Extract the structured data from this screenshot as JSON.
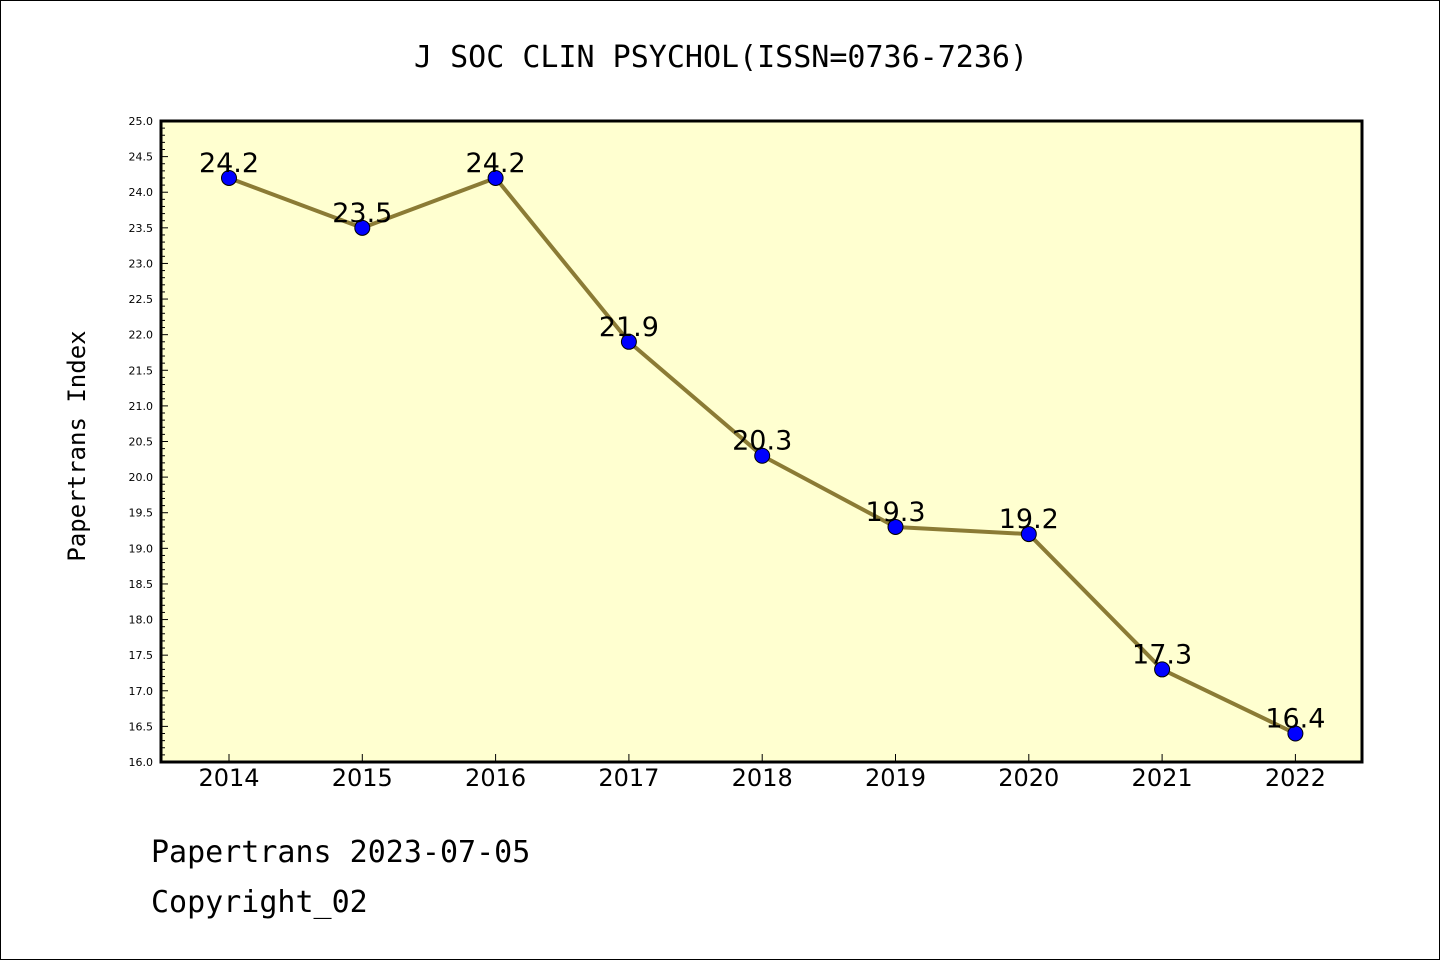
{
  "chart_data": {
    "type": "line",
    "title": "J SOC CLIN PSYCHOL(ISSN=0736-7236)",
    "xlabel": "",
    "ylabel": "Papertrans Index",
    "categories": [
      "2014",
      "2015",
      "2016",
      "2017",
      "2018",
      "2019",
      "2020",
      "2021",
      "2022"
    ],
    "series": [
      {
        "values": [
          24.2,
          23.5,
          24.2,
          21.9,
          20.3,
          19.3,
          19.2,
          17.3,
          16.4
        ]
      }
    ],
    "data_labels": [
      "24.2",
      "23.5",
      "24.2",
      "21.9",
      "20.3",
      "19.3",
      "19.2",
      "17.3",
      "16.4"
    ],
    "ylim": [
      16.0,
      25.0
    ],
    "yticks": [
      "16.0",
      "16.5",
      "17.0",
      "17.5",
      "18.0",
      "18.5",
      "19.0",
      "19.5",
      "20.0",
      "20.5",
      "21.0",
      "21.5",
      "22.0",
      "22.5",
      "23.0",
      "23.5",
      "24.0",
      "24.5",
      "25.0"
    ],
    "grid": false,
    "colors": {
      "plot_background": "#ffffd0",
      "line": "#8b7b35",
      "marker": "#0000ff",
      "axes": "#000000"
    }
  },
  "footer": {
    "line1": "Papertrans 2023-07-05",
    "line2": "Copyright_02"
  }
}
